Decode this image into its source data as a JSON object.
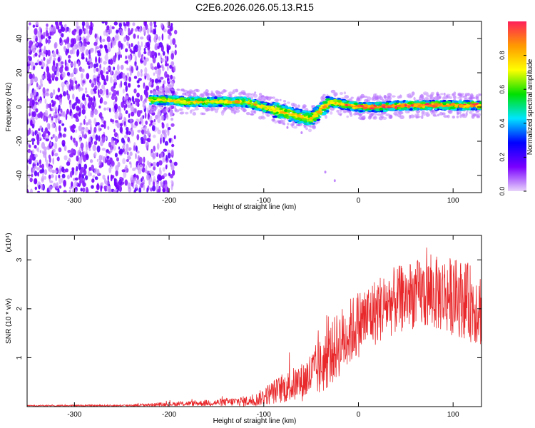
{
  "title": "C2E6.2026.026.05.13.R15",
  "chart_data": [
    {
      "type": "heatmap",
      "xlabel": "Height of straight line (km)",
      "ylabel": "Frequency (Hz)",
      "xlim": [
        -350,
        130
      ],
      "ylim": [
        -50,
        50
      ],
      "x_ticks": [
        -300,
        -200,
        -100,
        0,
        100
      ],
      "y_ticks": [
        -40,
        -20,
        0,
        20,
        40
      ],
      "colorbar": {
        "label": "Normalized spectral amplitude",
        "range": [
          0.0,
          1.0
        ],
        "ticks": [
          0.0,
          0.2,
          0.4,
          0.6,
          0.8
        ],
        "colors": [
          "#e9d4fb",
          "#7a00ff",
          "#0000ff",
          "#00e5ff",
          "#00e000",
          "#ffff00",
          "#ff9900",
          "#ff1f5a"
        ]
      },
      "noise_region_x": [
        -350,
        -200
      ],
      "signal_band": [
        {
          "x": -220,
          "f": 4
        },
        {
          "x": -200,
          "f": 4
        },
        {
          "x": -180,
          "f": 3
        },
        {
          "x": -160,
          "f": 3
        },
        {
          "x": -140,
          "f": 3
        },
        {
          "x": -120,
          "f": 3
        },
        {
          "x": -100,
          "f": 0
        },
        {
          "x": -80,
          "f": -3
        },
        {
          "x": -60,
          "f": -6
        },
        {
          "x": -50,
          "f": -7
        },
        {
          "x": -40,
          "f": -2
        },
        {
          "x": -30,
          "f": 3
        },
        {
          "x": -10,
          "f": 1
        },
        {
          "x": 0,
          "f": 0
        },
        {
          "x": 20,
          "f": 0
        },
        {
          "x": 50,
          "f": 1
        },
        {
          "x": 80,
          "f": 1
        },
        {
          "x": 100,
          "f": 1
        },
        {
          "x": 130,
          "f": 1
        }
      ]
    },
    {
      "type": "line",
      "xlabel": "Height of straight line (km)",
      "ylabel": "SNR (10 * v/v)",
      "y_multiplier": "(x10⁴)",
      "xlim": [
        -350,
        130
      ],
      "ylim": [
        0,
        3.5
      ],
      "x_ticks": [
        -300,
        -200,
        -100,
        0,
        100
      ],
      "y_ticks": [
        1,
        2,
        3
      ],
      "color": "#e8282b",
      "envelope": [
        {
          "x": -350,
          "mean": 0.02,
          "spread": 0.01
        },
        {
          "x": -250,
          "mean": 0.02,
          "spread": 0.02
        },
        {
          "x": -200,
          "mean": 0.05,
          "spread": 0.04
        },
        {
          "x": -150,
          "mean": 0.08,
          "spread": 0.07
        },
        {
          "x": -110,
          "mean": 0.12,
          "spread": 0.12
        },
        {
          "x": -90,
          "mean": 0.3,
          "spread": 0.25
        },
        {
          "x": -60,
          "mean": 0.5,
          "spread": 0.4
        },
        {
          "x": -40,
          "mean": 0.8,
          "spread": 0.6
        },
        {
          "x": -20,
          "mean": 1.3,
          "spread": 0.7
        },
        {
          "x": 0,
          "mean": 1.7,
          "spread": 0.7
        },
        {
          "x": 30,
          "mean": 2.1,
          "spread": 0.7
        },
        {
          "x": 60,
          "mean": 2.3,
          "spread": 0.7
        },
        {
          "x": 90,
          "mean": 2.3,
          "spread": 0.8
        },
        {
          "x": 110,
          "mean": 2.2,
          "spread": 0.8
        },
        {
          "x": 130,
          "mean": 2.0,
          "spread": 0.8
        }
      ]
    }
  ]
}
